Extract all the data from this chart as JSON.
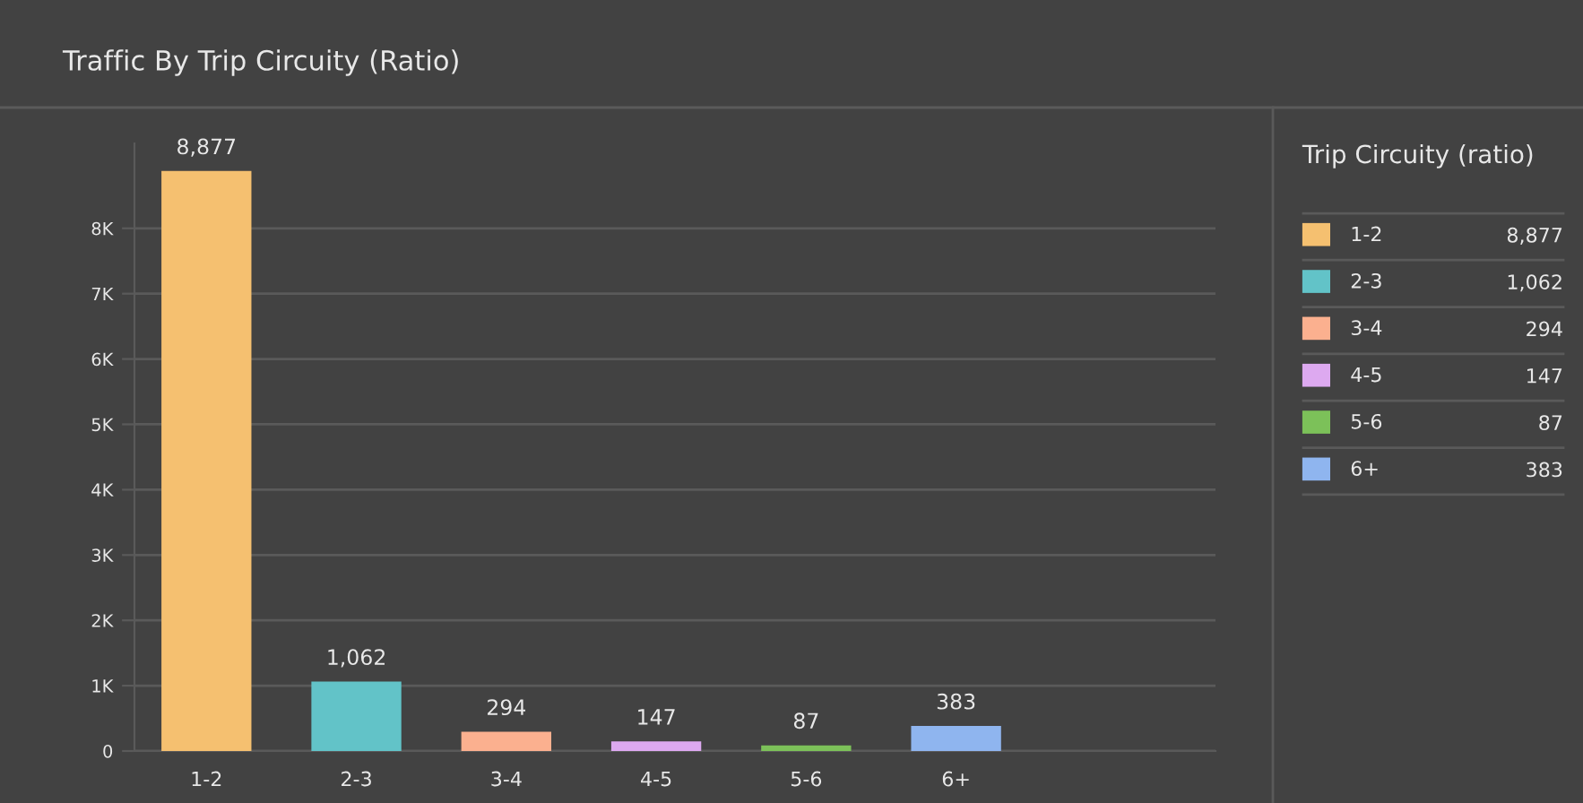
{
  "chart_data": {
    "type": "bar",
    "title": "Traffic By Trip Circuity (Ratio)",
    "legend_title": "Trip Circuity (ratio)",
    "categories": [
      "1-2",
      "2-3",
      "3-4",
      "4-5",
      "5-6",
      "6+"
    ],
    "series": [
      {
        "name": "1-2",
        "color": "#f5c070",
        "values": [
          8877,
          null,
          null,
          null,
          null,
          null
        ],
        "value_labels": [
          "8,877",
          null,
          null,
          null,
          null,
          null
        ]
      },
      {
        "name": "2-3",
        "color": "#62c3c8",
        "values": [
          null,
          1062,
          null,
          null,
          null,
          null
        ],
        "value_labels": [
          null,
          "1,062",
          null,
          null,
          null,
          null
        ]
      },
      {
        "name": "3-4",
        "color": "#fbb08f",
        "values": [
          null,
          null,
          294,
          null,
          null,
          null
        ],
        "value_labels": [
          null,
          null,
          "294",
          null,
          null,
          null
        ]
      },
      {
        "name": "4-5",
        "color": "#dda9f0",
        "values": [
          null,
          null,
          null,
          147,
          null,
          null
        ],
        "value_labels": [
          null,
          null,
          null,
          "147",
          null,
          null
        ]
      },
      {
        "name": "5-6",
        "color": "#7cc159",
        "values": [
          null,
          null,
          null,
          null,
          87,
          null
        ],
        "value_labels": [
          null,
          null,
          null,
          null,
          "87",
          null
        ]
      },
      {
        "name": "6+",
        "color": "#8fb5ef",
        "values": [
          null,
          null,
          null,
          null,
          null,
          383
        ],
        "value_labels": [
          null,
          null,
          null,
          null,
          null,
          "383"
        ]
      }
    ],
    "ylim": [
      0,
      9300
    ],
    "yticks": [
      0,
      {
        "value": 1000,
        "label": "1K"
      },
      {
        "value": 2000,
        "label": "2K"
      },
      {
        "value": 3000,
        "label": "3K"
      },
      {
        "value": 4000,
        "label": "4K"
      },
      {
        "value": 5000,
        "label": "5K"
      },
      {
        "value": 6000,
        "label": "6K"
      },
      {
        "value": 7000,
        "label": "7K"
      },
      {
        "value": 8000,
        "label": "8K"
      }
    ],
    "grid": "y",
    "legend": "right"
  }
}
